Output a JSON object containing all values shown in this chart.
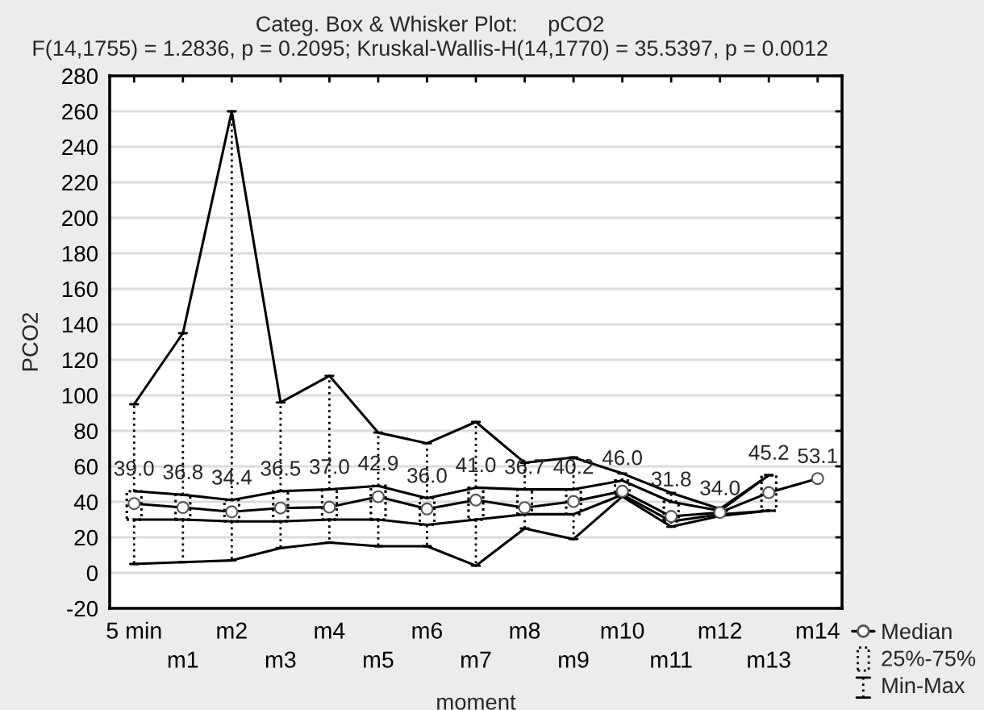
{
  "chart_data": {
    "type": "box",
    "title": "Categ. Box & Whisker Plot:     pCO2",
    "subtitle": "F(14,1755) = 1.2836, p = 0.2095; Kruskal-Wallis-H(14,1770) = 35.5397, p = 0.0012",
    "xlabel": "moment",
    "ylabel": "PCO2",
    "categories": [
      "5 min",
      "m1",
      "m2",
      "m3",
      "m4",
      "m5",
      "m6",
      "m7",
      "m8",
      "m9",
      "m10",
      "m11",
      "m12",
      "m13",
      "m14"
    ],
    "series": [
      {
        "name": "Median",
        "type": "line",
        "marker": "circle",
        "color": "#000000",
        "values": [
          39.0,
          36.8,
          34.4,
          36.5,
          37.0,
          42.9,
          36.0,
          41.0,
          36.7,
          40.2,
          46.0,
          31.8,
          34.0,
          45.2,
          53.1
        ],
        "value_labels": [
          "39.0",
          "36.8",
          "34.4",
          "36.5",
          "37.0",
          "42.9",
          "36.0",
          "41.0",
          "36.7",
          "40.2",
          "46.0",
          "31.8",
          "34.0",
          "45.2",
          "53.1"
        ]
      },
      {
        "name": "25%-75%",
        "color": "#000000",
        "boxes": [
          {
            "q1": 30,
            "q3": 46
          },
          {
            "q1": 30,
            "q3": 44
          },
          {
            "q1": 29,
            "q3": 41
          },
          {
            "q1": 29,
            "q3": 46
          },
          {
            "q1": 30,
            "q3": 47
          },
          {
            "q1": 30,
            "q3": 49
          },
          {
            "q1": 27,
            "q3": 42
          },
          {
            "q1": 30,
            "q3": 48
          },
          {
            "q1": 33,
            "q3": 47
          },
          {
            "q1": 33,
            "q3": 47
          },
          {
            "q1": 44,
            "q3": 52
          },
          {
            "q1": 29,
            "q3": 40
          },
          {
            "q1": 33,
            "q3": 35
          },
          {
            "q1": 35,
            "q3": 55
          },
          null
        ]
      },
      {
        "name": "Min-Max",
        "color": "#000000",
        "boxes": [
          {
            "low": 5,
            "q1": 30,
            "q3": 46,
            "high": 95
          },
          {
            "low": 6,
            "q1": 30,
            "q3": 44,
            "high": 135
          },
          {
            "low": 7,
            "q1": 29,
            "q3": 41,
            "high": 260
          },
          {
            "low": 14,
            "q1": 29,
            "q3": 46,
            "high": 96
          },
          {
            "low": 17,
            "q1": 30,
            "q3": 47,
            "high": 111
          },
          {
            "low": 15,
            "q1": 30,
            "q3": 49,
            "high": 79
          },
          {
            "low": 15,
            "q1": 27,
            "q3": 42,
            "high": 73
          },
          {
            "low": 4,
            "q1": 30,
            "q3": 48,
            "high": 85
          },
          {
            "low": 25,
            "q1": 33,
            "q3": 47,
            "high": 62
          },
          {
            "low": 19,
            "q1": 33,
            "q3": 47,
            "high": 65
          },
          {
            "low": 43,
            "q1": 44,
            "q3": 52,
            "high": 56
          },
          {
            "low": 26,
            "q1": 29,
            "q3": 40,
            "high": 45
          },
          {
            "low": 32,
            "q1": 33,
            "q3": 35,
            "high": 36
          },
          {
            "low": 35,
            "q1": 35,
            "q3": 55,
            "high": 55
          },
          null
        ]
      },
      {
        "type": "line",
        "color": "#000000",
        "values": [
          95,
          135,
          260,
          96,
          111,
          79,
          73,
          85,
          62,
          65,
          56,
          45,
          36,
          55,
          null
        ]
      },
      {
        "type": "line",
        "color": "#000000",
        "values": [
          46,
          44,
          41,
          46,
          47,
          49,
          42,
          48,
          47,
          47,
          52,
          40,
          35,
          55,
          null
        ]
      },
      {
        "type": "line",
        "color": "#000000",
        "values": [
          30,
          30,
          29,
          29,
          30,
          30,
          27,
          30,
          33,
          33,
          44,
          29,
          33,
          35,
          null
        ]
      },
      {
        "type": "line",
        "color": "#000000",
        "values": [
          5,
          6,
          7,
          14,
          17,
          15,
          15,
          4,
          25,
          19,
          43,
          26,
          32,
          35,
          null
        ]
      }
    ],
    "ylim": [
      -20,
      280
    ],
    "yticks": [
      -20,
      0,
      20,
      40,
      60,
      80,
      100,
      120,
      140,
      160,
      180,
      200,
      220,
      240,
      260,
      280
    ],
    "grid": "y",
    "legend": "bottom right",
    "line_style": "solid"
  }
}
